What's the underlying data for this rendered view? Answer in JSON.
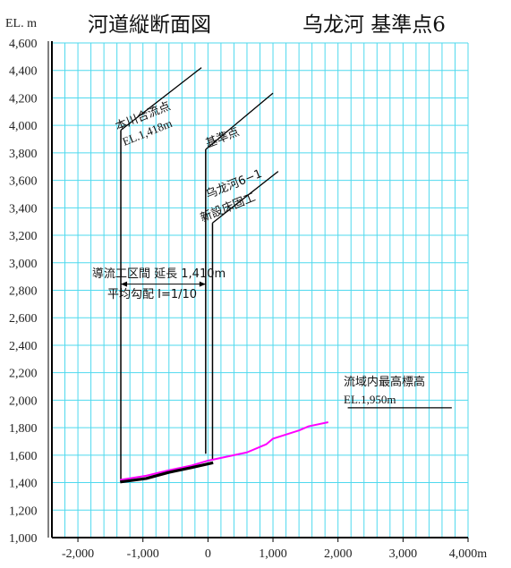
{
  "header": {
    "title_left": "河道縦断面図",
    "title_right": "乌龙河   基準点6"
  },
  "chart_data": {
    "type": "line",
    "title": "河道縦断面図",
    "ylabel": "EL. m",
    "xlabel": "",
    "x_unit_suffix": "m",
    "xlim": [
      -2400,
      4000
    ],
    "ylim": [
      1000,
      4600
    ],
    "x_ticks": [
      -2000,
      -1000,
      0,
      1000,
      2000,
      3000,
      4000
    ],
    "x_tick_labels": [
      "-2,000",
      "-1,000",
      "0",
      "1,000",
      "2,000",
      "3,000",
      "4,000m"
    ],
    "y_ticks": [
      1000,
      1200,
      1400,
      1600,
      1800,
      2000,
      2200,
      2400,
      2600,
      2800,
      3000,
      3200,
      3400,
      3600,
      3800,
      4000,
      4200,
      4400,
      4600
    ],
    "y_tick_labels": [
      "1,000",
      "1,200",
      "1,400",
      "1,600",
      "1,800",
      "2,000",
      "2,200",
      "2,400",
      "2,600",
      "2,800",
      "3,000",
      "3,200",
      "3,400",
      "3,600",
      "3,800",
      "4,000",
      "4,200",
      "4,400",
      "4,600"
    ],
    "grid": true,
    "series": [
      {
        "color": "#ff00ff",
        "x": [
          -1350,
          -950,
          -600,
          -250,
          0,
          300,
          600,
          900,
          1000,
          1200,
          1400,
          1550,
          1850
        ],
        "y": [
          1420,
          1450,
          1490,
          1525,
          1560,
          1590,
          1620,
          1680,
          1720,
          1750,
          1780,
          1810,
          1840
        ]
      },
      {
        "color": "#000000",
        "x": [
          -1350,
          -950,
          -600,
          -250,
          80
        ],
        "y": [
          1405,
          1430,
          1475,
          1510,
          1545
        ]
      }
    ],
    "annotations": {
      "confluence": {
        "line1": "本川合流点",
        "line2": "EL.1,418m"
      },
      "base_point": {
        "label": "基準点"
      },
      "structure": {
        "line1": "乌龙河6−1",
        "line2": "新設床固工"
      },
      "section": {
        "line1": "導流工区間   延長 1,410m",
        "line2": "平均勾配   I=1/10"
      },
      "highest": {
        "line1": "流域内最高標高",
        "line2": "EL.1,950m"
      }
    }
  }
}
